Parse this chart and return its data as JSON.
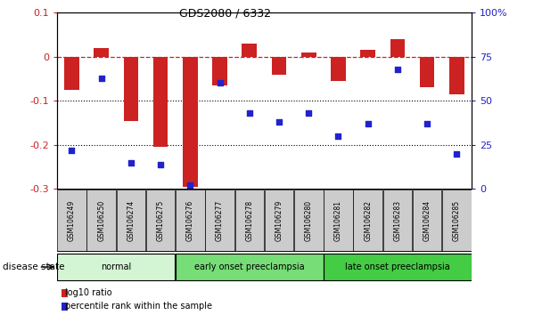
{
  "title": "GDS2080 / 6332",
  "samples": [
    "GSM106249",
    "GSM106250",
    "GSM106274",
    "GSM106275",
    "GSM106276",
    "GSM106277",
    "GSM106278",
    "GSM106279",
    "GSM106280",
    "GSM106281",
    "GSM106282",
    "GSM106283",
    "GSM106284",
    "GSM106285"
  ],
  "log10_ratio": [
    -0.075,
    0.02,
    -0.145,
    -0.205,
    -0.295,
    -0.065,
    0.03,
    -0.04,
    0.01,
    -0.055,
    0.015,
    0.04,
    -0.07,
    -0.085
  ],
  "percentile_rank": [
    22,
    63,
    15,
    14,
    2,
    60,
    43,
    38,
    43,
    30,
    37,
    68,
    37,
    20
  ],
  "ylim_left": [
    -0.3,
    0.1
  ],
  "ylim_right": [
    0,
    100
  ],
  "right_ticks": [
    0,
    25,
    50,
    75,
    100
  ],
  "right_tick_labels": [
    "0",
    "25",
    "50",
    "75",
    "100%"
  ],
  "left_ticks": [
    -0.3,
    -0.2,
    -0.1,
    0,
    0.1
  ],
  "dotted_lines": [
    -0.1,
    -0.2
  ],
  "bar_color": "#cc2222",
  "dot_color": "#2222cc",
  "bar_width": 0.5,
  "groups": [
    {
      "label": "normal",
      "start": 0,
      "end": 3,
      "color": "#d4f5d4"
    },
    {
      "label": "early onset preeclampsia",
      "start": 4,
      "end": 8,
      "color": "#77dd77"
    },
    {
      "label": "late onset preeclampsia",
      "start": 9,
      "end": 13,
      "color": "#44cc44"
    }
  ],
  "group_label": "disease state",
  "legend_bar_label": "log10 ratio",
  "legend_dot_label": "percentile rank within the sample",
  "tick_label_bg": "#cccccc",
  "bg_color": "#ffffff"
}
